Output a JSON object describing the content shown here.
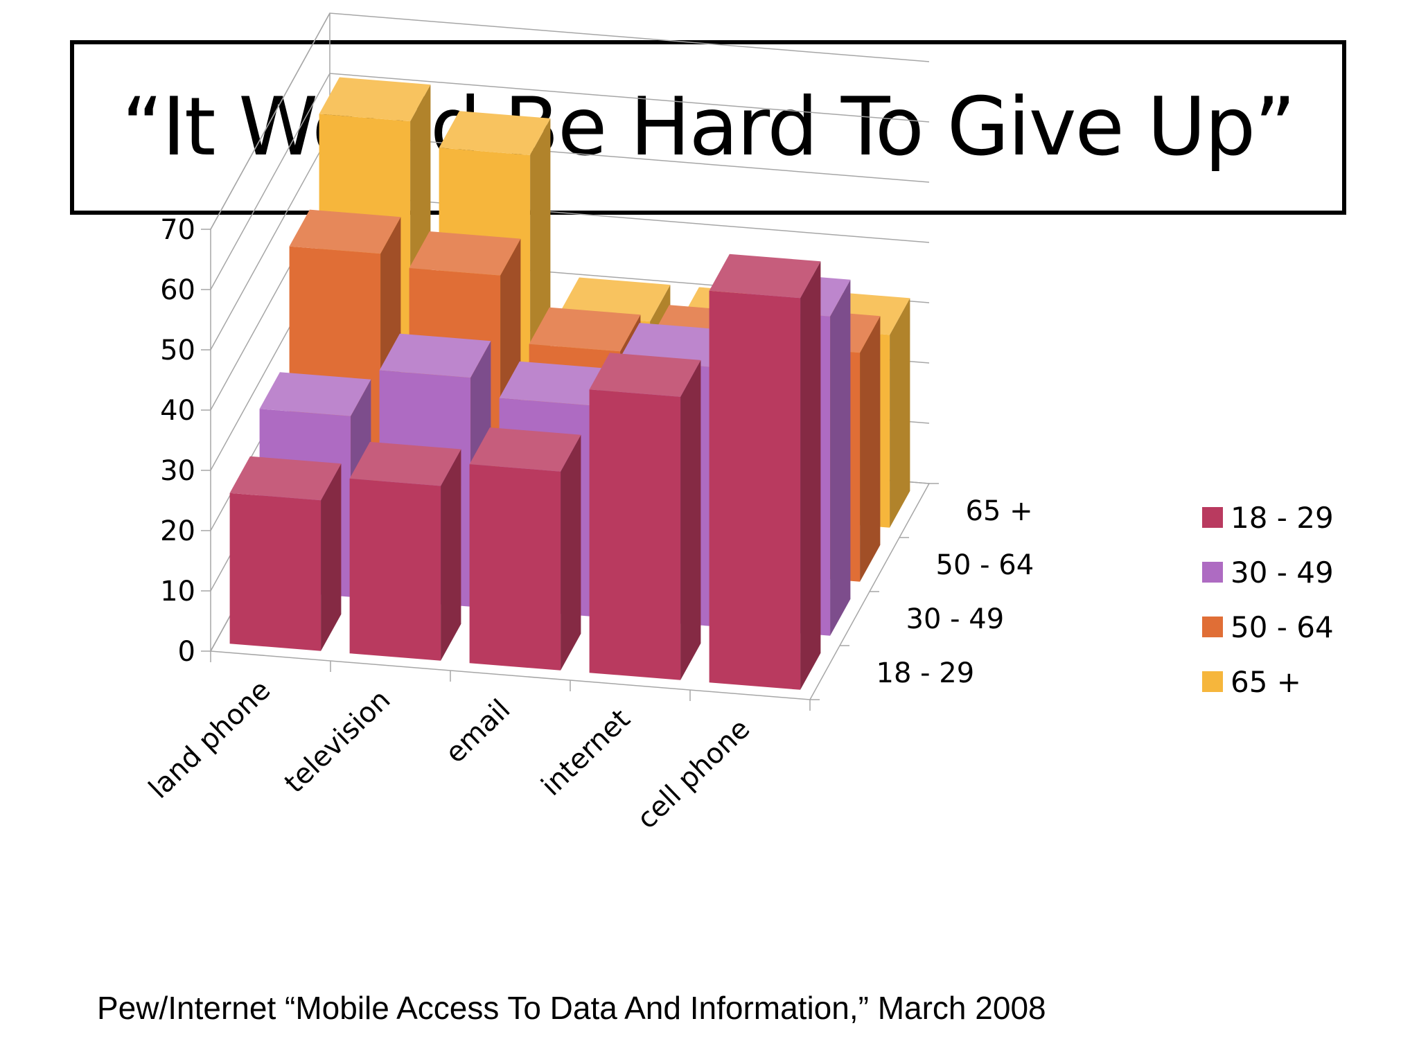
{
  "title": "“It Would Be Hard To Give Up”",
  "source": "Pew/Internet “Mobile Access To Data And Information,” March 2008",
  "chart_data": {
    "type": "bar",
    "subtype": "3d-column",
    "categories": [
      "land phone",
      "television",
      "email",
      "internet",
      "cell phone"
    ],
    "series": [
      {
        "name": "18 - 29",
        "color": "#B93A5F",
        "values": [
          25,
          29,
          33,
          47,
          65
        ]
      },
      {
        "name": "30 - 49",
        "color": "#AE6BC2",
        "values": [
          30,
          38,
          35,
          43,
          53
        ]
      },
      {
        "name": "50 - 64",
        "color": "#E06E36",
        "values": [
          48,
          46,
          35,
          37,
          38
        ]
      },
      {
        "name": "65 +",
        "color": "#F6B63C",
        "values": [
          61,
          57,
          31,
          31,
          32
        ]
      }
    ],
    "yticks": [
      "0",
      "10",
      "20",
      "30",
      "40",
      "50",
      "60",
      "70"
    ],
    "ylim": [
      0,
      70
    ],
    "legend": [
      "18 - 29",
      "30 - 49",
      "50 - 64",
      "65 +"
    ],
    "legend_position": "right",
    "grid": true
  }
}
